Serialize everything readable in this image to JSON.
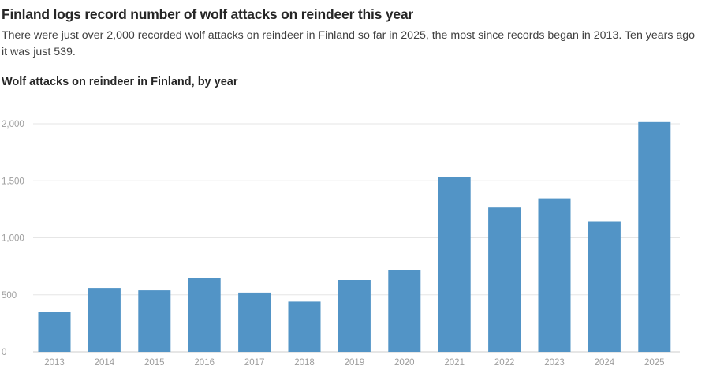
{
  "headline": "Finland logs record number of wolf attacks on reindeer this year",
  "subtitle": "There were just over 2,000 recorded wolf attacks on reindeer in Finland so far in 2025, the most since records began in 2013. Ten years ago it was just 539.",
  "colors": {
    "bar": "#5294c6",
    "grid": "#e6e6e6",
    "axis": "#cccccc",
    "tick_text": "#9e9e9e"
  },
  "chart_data": {
    "type": "bar",
    "title": "Wolf attacks on reindeer in Finland, by year",
    "xlabel": "",
    "ylabel": "",
    "categories": [
      "2013",
      "2014",
      "2015",
      "2016",
      "2017",
      "2018",
      "2019",
      "2020",
      "2021",
      "2022",
      "2023",
      "2024",
      "2025"
    ],
    "values": [
      350,
      560,
      539,
      650,
      520,
      440,
      630,
      715,
      1535,
      1265,
      1345,
      1145,
      2015
    ],
    "ylim": [
      0,
      2000
    ],
    "yticks": [
      0,
      500,
      1000,
      1500,
      2000
    ],
    "ytick_labels": [
      "0",
      "500",
      "1,000",
      "1,500",
      "2,000"
    ],
    "grid": true
  }
}
